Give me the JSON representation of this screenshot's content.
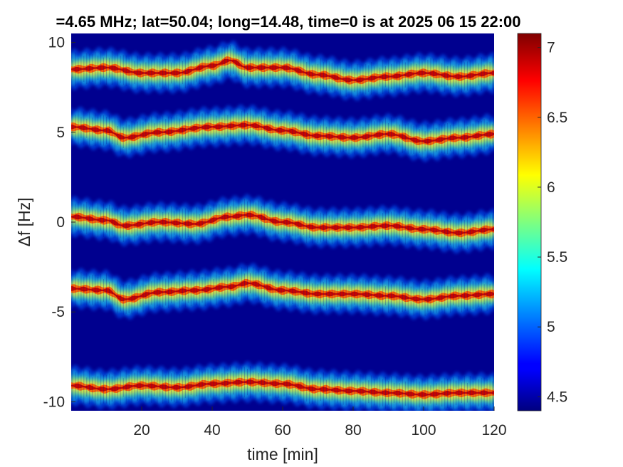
{
  "chart_data": {
    "type": "heatmap",
    "title": "=4.65 MHz;  lat=50.04; long=14.48, time=0 is at 2025 06 15 22:00",
    "xlabel": "time [min]",
    "ylabel": "Δf [Hz]",
    "xlim": [
      0,
      120
    ],
    "ylim": [
      -10.5,
      10.5
    ],
    "xticks": [
      20,
      40,
      60,
      80,
      100,
      120
    ],
    "yticks": [
      10,
      5,
      0,
      -5,
      -10
    ],
    "xtick_labels": [
      "20",
      "40",
      "60",
      "80",
      "100",
      "120"
    ],
    "ytick_labels": [
      "10",
      "5",
      "0",
      "-5",
      "-10"
    ],
    "colorbar": {
      "range": [
        4.4,
        7.1
      ],
      "ticks": [
        7,
        6.5,
        6,
        5.5,
        5,
        4.5
      ],
      "tick_labels": [
        "7",
        "6.5",
        "6",
        "5.5",
        "5",
        "4.5"
      ],
      "colormap": "jet"
    },
    "background_color": "#00008f",
    "traces": [
      {
        "name": "",
        "t": [
          0,
          10,
          20,
          30,
          40,
          45,
          50,
          60,
          70,
          80,
          90,
          100,
          110,
          120
        ],
        "df": [
          8.5,
          8.6,
          8.3,
          8.3,
          8.7,
          9.0,
          8.6,
          8.6,
          8.2,
          7.9,
          8.1,
          8.3,
          8.1,
          8.3
        ]
      },
      {
        "name": "",
        "t": [
          0,
          10,
          15,
          25,
          40,
          50,
          60,
          70,
          80,
          90,
          100,
          110,
          120
        ],
        "df": [
          5.3,
          5.1,
          4.7,
          5.0,
          5.3,
          5.4,
          5.1,
          4.8,
          4.7,
          4.9,
          4.5,
          4.7,
          4.9
        ]
      },
      {
        "name": "",
        "t": [
          0,
          10,
          15,
          25,
          35,
          45,
          50,
          60,
          70,
          80,
          90,
          100,
          110,
          120
        ],
        "df": [
          0.3,
          0.1,
          -0.2,
          0.0,
          -0.1,
          0.3,
          0.4,
          0.0,
          -0.3,
          -0.3,
          -0.2,
          -0.4,
          -0.6,
          -0.4
        ]
      },
      {
        "name": "",
        "t": [
          0,
          10,
          15,
          25,
          35,
          45,
          50,
          60,
          70,
          80,
          90,
          100,
          110,
          120
        ],
        "df": [
          -3.7,
          -3.8,
          -4.3,
          -3.9,
          -3.8,
          -3.6,
          -3.4,
          -3.8,
          -4.0,
          -4.0,
          -4.1,
          -4.3,
          -4.1,
          -4.0
        ]
      },
      {
        "name": "",
        "t": [
          0,
          10,
          20,
          30,
          40,
          50,
          60,
          70,
          80,
          90,
          100,
          110,
          120
        ],
        "df": [
          -9.1,
          -9.3,
          -9.1,
          -9.2,
          -9.0,
          -8.9,
          -9.0,
          -9.3,
          -9.4,
          -9.5,
          -9.6,
          -9.5,
          -9.5
        ]
      }
    ]
  }
}
